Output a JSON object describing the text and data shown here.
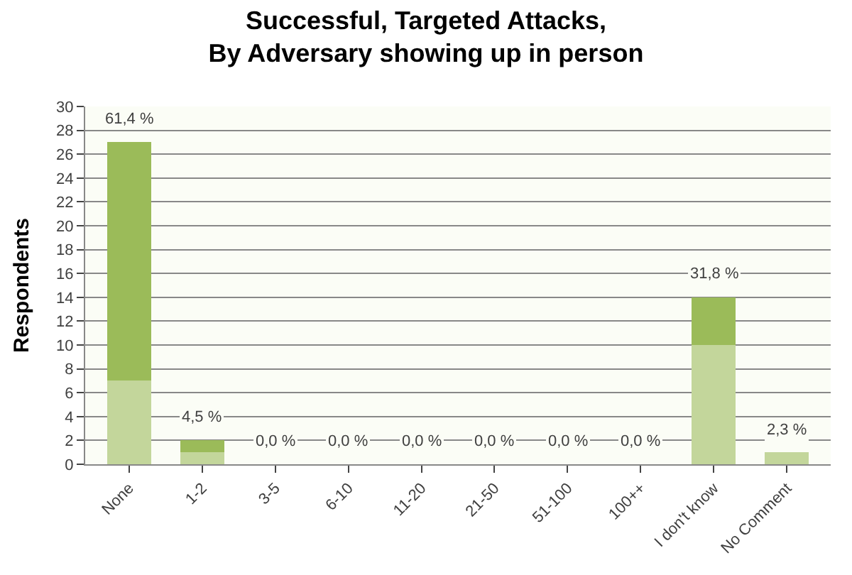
{
  "chart_data": {
    "type": "bar",
    "title": "Successful, Targeted Attacks,\nBy Adversary showing up in person",
    "ylabel": "Respondents",
    "categories": [
      "None",
      "1-2",
      "3-5",
      "6-10",
      "11-20",
      "21-50",
      "51-100",
      "100++",
      "I don't know",
      "No Comment"
    ],
    "series": [
      {
        "color": "#c3d69b",
        "values": [
          7,
          1,
          0,
          0,
          0,
          0,
          0,
          0,
          10,
          1
        ]
      },
      {
        "color": "#9bbb59",
        "values": [
          20,
          1,
          0,
          0,
          0,
          0,
          0,
          0,
          4,
          0
        ]
      }
    ],
    "stacked": true,
    "annotations": [
      {
        "text": "61,4 %",
        "x": "None",
        "y": 27
      },
      {
        "text": "4,5 %",
        "x": "1-2",
        "y": 2
      },
      {
        "text": "0,0 %",
        "x": "3-5",
        "y": 0
      },
      {
        "text": "0,0 %",
        "x": "6-10",
        "y": 0
      },
      {
        "text": "0,0 %",
        "x": "11-20",
        "y": 0
      },
      {
        "text": "0,0 %",
        "x": "21-50",
        "y": 0
      },
      {
        "text": "0,0 %",
        "x": "51-100",
        "y": 0
      },
      {
        "text": "0,0 %",
        "x": "100++",
        "y": 0
      },
      {
        "text": "31,8 %",
        "x": "I don't know",
        "y": 14
      },
      {
        "text": "2,3 %",
        "x": "No Comment",
        "y": 1
      }
    ],
    "ylim": [
      0,
      30
    ],
    "yticks": [
      0,
      2,
      4,
      6,
      8,
      10,
      12,
      14,
      16,
      18,
      20,
      22,
      24,
      26,
      28,
      30
    ],
    "grid": "y",
    "legend": false
  }
}
